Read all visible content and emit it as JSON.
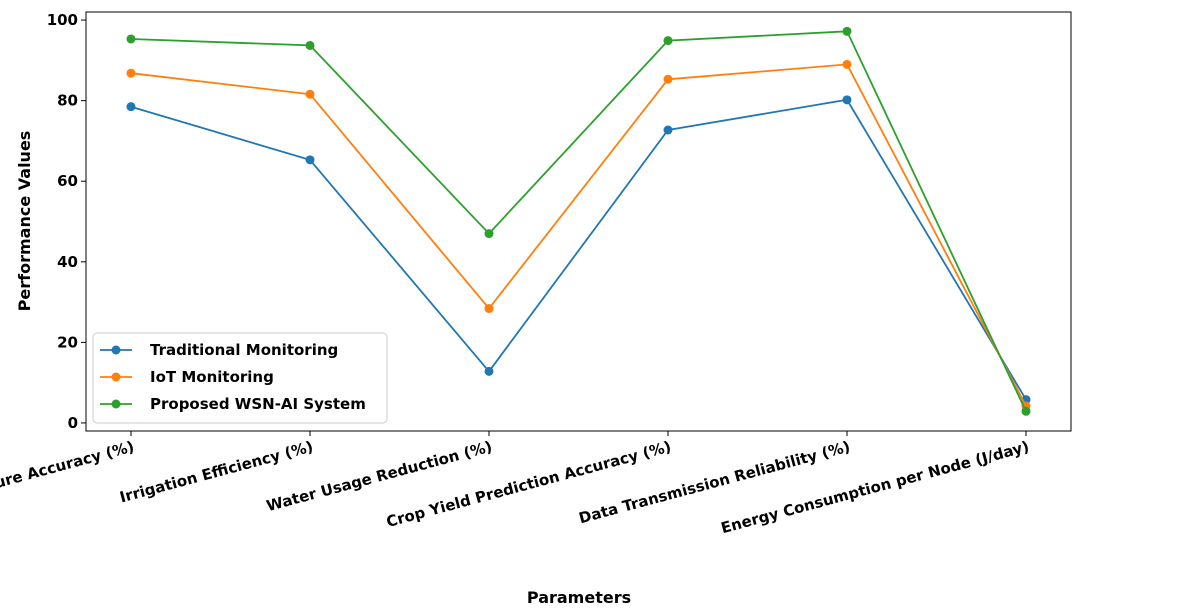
{
  "chart_data": {
    "type": "line",
    "xlabel": "Parameters",
    "ylabel": "Performance Values",
    "categories": [
      "Soil Moisture Accuracy (%)",
      "Irrigation Efficiency (%)",
      "Water Usage Reduction (%)",
      "Crop Yield Prediction Accuracy (%)",
      "Data Transmission Reliability (%)",
      "Energy Consumption per Node (J/day)"
    ],
    "ylim": [
      -2,
      102
    ],
    "yticks": [
      "0",
      "20",
      "40",
      "60",
      "80",
      "100"
    ],
    "grid": false,
    "legend_position": "lower-left",
    "series": [
      {
        "name": "Traditional Monitoring",
        "color": "#1f77b4",
        "values": [
          78.5,
          65.3,
          12.8,
          72.7,
          80.2,
          5.8
        ]
      },
      {
        "name": "IoT Monitoring",
        "color": "#ff7f0e",
        "values": [
          86.8,
          81.6,
          28.4,
          85.3,
          89.0,
          4.2
        ]
      },
      {
        "name": "Proposed WSN-AI System",
        "color": "#2ca02c",
        "values": [
          95.3,
          93.7,
          47.0,
          94.9,
          97.2,
          2.9
        ]
      }
    ]
  }
}
